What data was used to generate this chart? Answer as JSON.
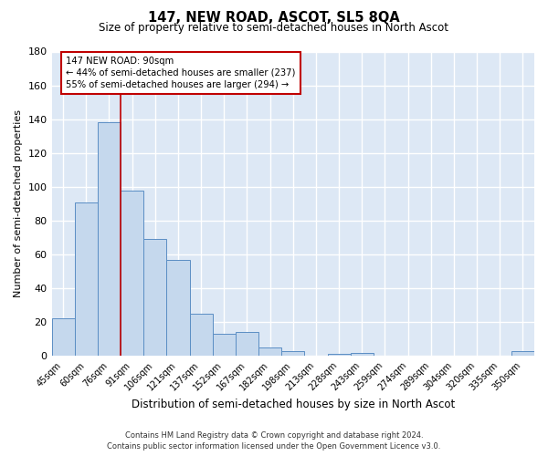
{
  "title": "147, NEW ROAD, ASCOT, SL5 8QA",
  "subtitle": "Size of property relative to semi-detached houses in North Ascot",
  "xlabel": "Distribution of semi-detached houses by size in North Ascot",
  "ylabel": "Number of semi-detached properties",
  "categories": [
    "45sqm",
    "60sqm",
    "76sqm",
    "91sqm",
    "106sqm",
    "121sqm",
    "137sqm",
    "152sqm",
    "167sqm",
    "182sqm",
    "198sqm",
    "213sqm",
    "228sqm",
    "243sqm",
    "259sqm",
    "274sqm",
    "289sqm",
    "304sqm",
    "320sqm",
    "335sqm",
    "350sqm"
  ],
  "values": [
    22,
    91,
    138,
    98,
    69,
    57,
    25,
    13,
    14,
    5,
    3,
    0,
    1,
    2,
    0,
    0,
    0,
    0,
    0,
    0,
    3
  ],
  "bar_color": "#c5d8ed",
  "bar_edge_color": "#5b8ec4",
  "highlight_line_color": "#c00000",
  "annotation_title": "147 NEW ROAD: 90sqm",
  "annotation_line1": "← 44% of semi-detached houses are smaller (237)",
  "annotation_line2": "55% of semi-detached houses are larger (294) →",
  "annotation_box_color": "#c00000",
  "ylim": [
    0,
    180
  ],
  "yticks": [
    0,
    20,
    40,
    60,
    80,
    100,
    120,
    140,
    160,
    180
  ],
  "fig_bg_color": "#ffffff",
  "ax_bg_color": "#dde8f5",
  "grid_color": "#ffffff",
  "footer_line1": "Contains HM Land Registry data © Crown copyright and database right 2024.",
  "footer_line2": "Contains public sector information licensed under the Open Government Licence v3.0."
}
